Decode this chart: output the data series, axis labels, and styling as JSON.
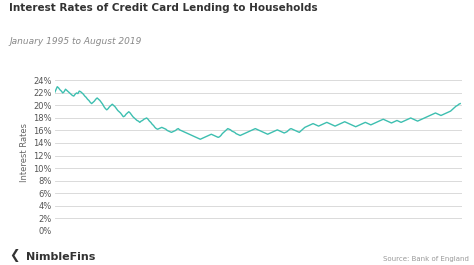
{
  "title": "Interest Rates of Credit Card Lending to Households",
  "subtitle": "January 1995 to August 2019",
  "ylabel": "Interest Rates",
  "line_color": "#3dbfb0",
  "background_color": "#ffffff",
  "grid_color": "#d4d4d4",
  "title_fontsize": 7.5,
  "subtitle_fontsize": 6.5,
  "ylabel_fontsize": 6,
  "tick_fontsize": 6,
  "source_text": "Source: Bank of England",
  "nimblefins_text": "NimbleFins",
  "ylim": [
    0,
    25
  ],
  "ytick_values": [
    0,
    2,
    4,
    6,
    8,
    10,
    12,
    14,
    16,
    18,
    20,
    22,
    24
  ],
  "x_start_year": 1995,
  "x_end_year": 2019.7,
  "line_width": 1.0,
  "years": [
    1995.0,
    1995.083,
    1995.167,
    1995.25,
    1995.333,
    1995.417,
    1995.5,
    1995.583,
    1995.667,
    1995.75,
    1995.833,
    1995.917,
    1996.0,
    1996.083,
    1996.167,
    1996.25,
    1996.333,
    1996.417,
    1996.5,
    1996.583,
    1996.667,
    1996.75,
    1996.833,
    1996.917,
    1997.0,
    1997.083,
    1997.167,
    1997.25,
    1997.333,
    1997.417,
    1997.5,
    1997.583,
    1997.667,
    1997.75,
    1997.833,
    1997.917,
    1998.0,
    1998.083,
    1998.167,
    1998.25,
    1998.333,
    1998.417,
    1998.5,
    1998.583,
    1998.667,
    1998.75,
    1998.833,
    1998.917,
    1999.0,
    1999.083,
    1999.167,
    1999.25,
    1999.333,
    1999.417,
    1999.5,
    1999.583,
    1999.667,
    1999.75,
    1999.833,
    1999.917,
    2000.0,
    2000.083,
    2000.167,
    2000.25,
    2000.333,
    2000.417,
    2000.5,
    2000.583,
    2000.667,
    2000.75,
    2000.833,
    2000.917,
    2001.0,
    2001.083,
    2001.167,
    2001.25,
    2001.333,
    2001.417,
    2001.5,
    2001.583,
    2001.667,
    2001.75,
    2001.833,
    2001.917,
    2002.0,
    2002.083,
    2002.167,
    2002.25,
    2002.333,
    2002.417,
    2002.5,
    2002.583,
    2002.667,
    2002.75,
    2002.833,
    2002.917,
    2003.0,
    2003.083,
    2003.167,
    2003.25,
    2003.333,
    2003.417,
    2003.5,
    2003.583,
    2003.667,
    2003.75,
    2003.833,
    2003.917,
    2004.0,
    2004.083,
    2004.167,
    2004.25,
    2004.333,
    2004.417,
    2004.5,
    2004.583,
    2004.667,
    2004.75,
    2004.833,
    2004.917,
    2005.0,
    2005.083,
    2005.167,
    2005.25,
    2005.333,
    2005.417,
    2005.5,
    2005.583,
    2005.667,
    2005.75,
    2005.833,
    2005.917,
    2006.0,
    2006.083,
    2006.167,
    2006.25,
    2006.333,
    2006.417,
    2006.5,
    2006.583,
    2006.667,
    2006.75,
    2006.833,
    2006.917,
    2007.0,
    2007.083,
    2007.167,
    2007.25,
    2007.333,
    2007.417,
    2007.5,
    2007.583,
    2007.667,
    2007.75,
    2007.833,
    2007.917,
    2008.0,
    2008.083,
    2008.167,
    2008.25,
    2008.333,
    2008.417,
    2008.5,
    2008.583,
    2008.667,
    2008.75,
    2008.833,
    2008.917,
    2009.0,
    2009.083,
    2009.167,
    2009.25,
    2009.333,
    2009.417,
    2009.5,
    2009.583,
    2009.667,
    2009.75,
    2009.833,
    2009.917,
    2010.0,
    2010.083,
    2010.167,
    2010.25,
    2010.333,
    2010.417,
    2010.5,
    2010.583,
    2010.667,
    2010.75,
    2010.833,
    2010.917,
    2011.0,
    2011.083,
    2011.167,
    2011.25,
    2011.333,
    2011.417,
    2011.5,
    2011.583,
    2011.667,
    2011.75,
    2011.833,
    2011.917,
    2012.0,
    2012.083,
    2012.167,
    2012.25,
    2012.333,
    2012.417,
    2012.5,
    2012.583,
    2012.667,
    2012.75,
    2012.833,
    2012.917,
    2013.0,
    2013.083,
    2013.167,
    2013.25,
    2013.333,
    2013.417,
    2013.5,
    2013.583,
    2013.667,
    2013.75,
    2013.833,
    2013.917,
    2014.0,
    2014.083,
    2014.167,
    2014.25,
    2014.333,
    2014.417,
    2014.5,
    2014.583,
    2014.667,
    2014.75,
    2014.833,
    2014.917,
    2015.0,
    2015.083,
    2015.167,
    2015.25,
    2015.333,
    2015.417,
    2015.5,
    2015.583,
    2015.667,
    2015.75,
    2015.833,
    2015.917,
    2016.0,
    2016.083,
    2016.167,
    2016.25,
    2016.333,
    2016.417,
    2016.5,
    2016.583,
    2016.667,
    2016.75,
    2016.833,
    2016.917,
    2017.0,
    2017.083,
    2017.167,
    2017.25,
    2017.333,
    2017.417,
    2017.5,
    2017.583,
    2017.667,
    2017.75,
    2017.833,
    2017.917,
    2018.0,
    2018.083,
    2018.167,
    2018.25,
    2018.333,
    2018.417,
    2018.5,
    2018.583,
    2018.667,
    2018.75,
    2018.833,
    2018.917,
    2019.0,
    2019.083,
    2019.167,
    2019.25,
    2019.333,
    2019.417,
    2019.5,
    2019.583
  ],
  "rates": [
    22.0,
    22.5,
    23.0,
    22.8,
    22.5,
    22.3,
    22.0,
    22.2,
    22.6,
    22.4,
    22.2,
    22.0,
    21.8,
    21.6,
    21.5,
    21.8,
    22.0,
    21.9,
    22.3,
    22.2,
    22.0,
    21.8,
    21.5,
    21.3,
    21.0,
    20.8,
    20.5,
    20.3,
    20.5,
    20.7,
    21.0,
    21.2,
    21.0,
    20.8,
    20.5,
    20.2,
    19.8,
    19.5,
    19.3,
    19.5,
    19.8,
    20.0,
    20.2,
    20.0,
    19.8,
    19.5,
    19.2,
    19.0,
    18.8,
    18.5,
    18.2,
    18.3,
    18.6,
    18.8,
    19.0,
    18.8,
    18.5,
    18.2,
    18.0,
    17.8,
    17.6,
    17.5,
    17.3,
    17.5,
    17.6,
    17.8,
    17.9,
    18.0,
    17.8,
    17.5,
    17.3,
    17.0,
    16.8,
    16.5,
    16.3,
    16.2,
    16.3,
    16.4,
    16.5,
    16.4,
    16.3,
    16.2,
    16.0,
    15.9,
    15.8,
    15.7,
    15.8,
    15.9,
    16.0,
    16.2,
    16.3,
    16.1,
    16.0,
    15.9,
    15.8,
    15.7,
    15.6,
    15.5,
    15.4,
    15.3,
    15.2,
    15.1,
    15.0,
    14.9,
    14.8,
    14.7,
    14.6,
    14.7,
    14.8,
    14.9,
    15.0,
    15.1,
    15.2,
    15.3,
    15.4,
    15.3,
    15.2,
    15.1,
    15.0,
    14.9,
    15.0,
    15.2,
    15.5,
    15.7,
    15.9,
    16.1,
    16.3,
    16.2,
    16.1,
    15.9,
    15.8,
    15.7,
    15.5,
    15.4,
    15.3,
    15.2,
    15.3,
    15.4,
    15.5,
    15.6,
    15.7,
    15.8,
    15.9,
    16.0,
    16.1,
    16.2,
    16.3,
    16.2,
    16.1,
    16.0,
    15.9,
    15.8,
    15.7,
    15.6,
    15.5,
    15.4,
    15.5,
    15.6,
    15.7,
    15.8,
    15.9,
    16.0,
    16.1,
    16.0,
    15.9,
    15.8,
    15.7,
    15.6,
    15.7,
    15.8,
    16.0,
    16.2,
    16.3,
    16.2,
    16.1,
    16.0,
    15.9,
    15.8,
    15.7,
    15.9,
    16.1,
    16.3,
    16.5,
    16.6,
    16.7,
    16.8,
    16.9,
    17.0,
    17.1,
    17.0,
    16.9,
    16.8,
    16.7,
    16.8,
    16.9,
    17.0,
    17.1,
    17.2,
    17.3,
    17.2,
    17.1,
    17.0,
    16.9,
    16.8,
    16.7,
    16.8,
    16.9,
    17.0,
    17.1,
    17.2,
    17.3,
    17.4,
    17.3,
    17.2,
    17.1,
    17.0,
    16.9,
    16.8,
    16.7,
    16.6,
    16.7,
    16.8,
    16.9,
    17.0,
    17.1,
    17.2,
    17.3,
    17.2,
    17.1,
    17.0,
    16.9,
    17.0,
    17.1,
    17.2,
    17.3,
    17.4,
    17.5,
    17.6,
    17.7,
    17.8,
    17.7,
    17.6,
    17.5,
    17.4,
    17.3,
    17.2,
    17.3,
    17.4,
    17.5,
    17.6,
    17.5,
    17.4,
    17.3,
    17.4,
    17.5,
    17.6,
    17.7,
    17.8,
    17.9,
    18.0,
    17.9,
    17.8,
    17.7,
    17.6,
    17.5,
    17.6,
    17.7,
    17.8,
    17.9,
    18.0,
    18.1,
    18.2,
    18.3,
    18.4,
    18.5,
    18.6,
    18.7,
    18.8,
    18.7,
    18.6,
    18.5,
    18.4,
    18.5,
    18.6,
    18.7,
    18.8,
    18.9,
    19.0,
    19.1,
    19.3,
    19.5,
    19.7,
    19.9,
    20.0,
    20.2,
    20.3
  ]
}
